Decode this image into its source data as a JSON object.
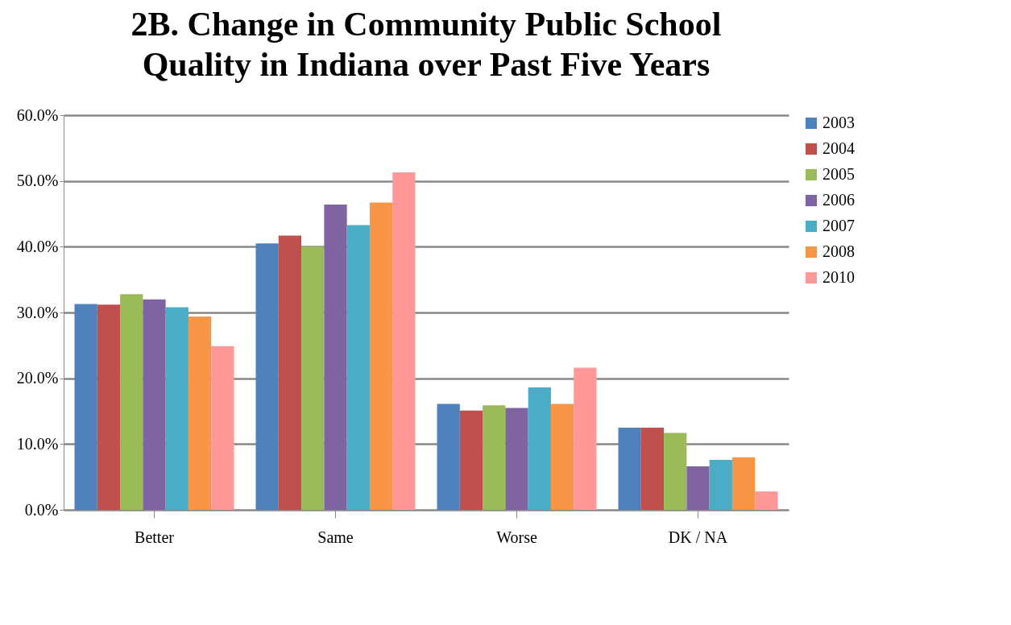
{
  "chart_data": {
    "type": "bar",
    "title": "2B. Change in Community Public School Quality in Indiana over Past Five Years",
    "categories": [
      "Better",
      "Same",
      "Worse",
      "DK / NA"
    ],
    "series": [
      {
        "name": "2003",
        "color": "#4f81bd",
        "values": [
          31.3,
          40.5,
          16.1,
          12.5
        ]
      },
      {
        "name": "2004",
        "color": "#c0504d",
        "values": [
          31.2,
          41.7,
          15.1,
          12.5
        ]
      },
      {
        "name": "2005",
        "color": "#9bbb59",
        "values": [
          32.8,
          40.0,
          15.9,
          11.7
        ]
      },
      {
        "name": "2006",
        "color": "#8064a2",
        "values": [
          32.0,
          46.4,
          15.5,
          6.6
        ]
      },
      {
        "name": "2007",
        "color": "#4bacc6",
        "values": [
          30.8,
          43.3,
          18.6,
          7.6
        ]
      },
      {
        "name": "2008",
        "color": "#f79646",
        "values": [
          29.4,
          46.7,
          16.1,
          8.0
        ]
      },
      {
        "name": "2010",
        "color": "#ff9999",
        "values": [
          24.9,
          51.3,
          21.6,
          2.8
        ]
      }
    ],
    "ylim": [
      0,
      60
    ],
    "yticks": [
      {
        "value": 0,
        "label": "0.0%"
      },
      {
        "value": 10,
        "label": "10.0%"
      },
      {
        "value": 20,
        "label": "20.0%"
      },
      {
        "value": 30,
        "label": "30.0%"
      },
      {
        "value": 40,
        "label": "40.0%"
      },
      {
        "value": 50,
        "label": "50.0%"
      },
      {
        "value": 60,
        "label": "60.0%"
      }
    ],
    "grid": "y",
    "legend": "right"
  }
}
